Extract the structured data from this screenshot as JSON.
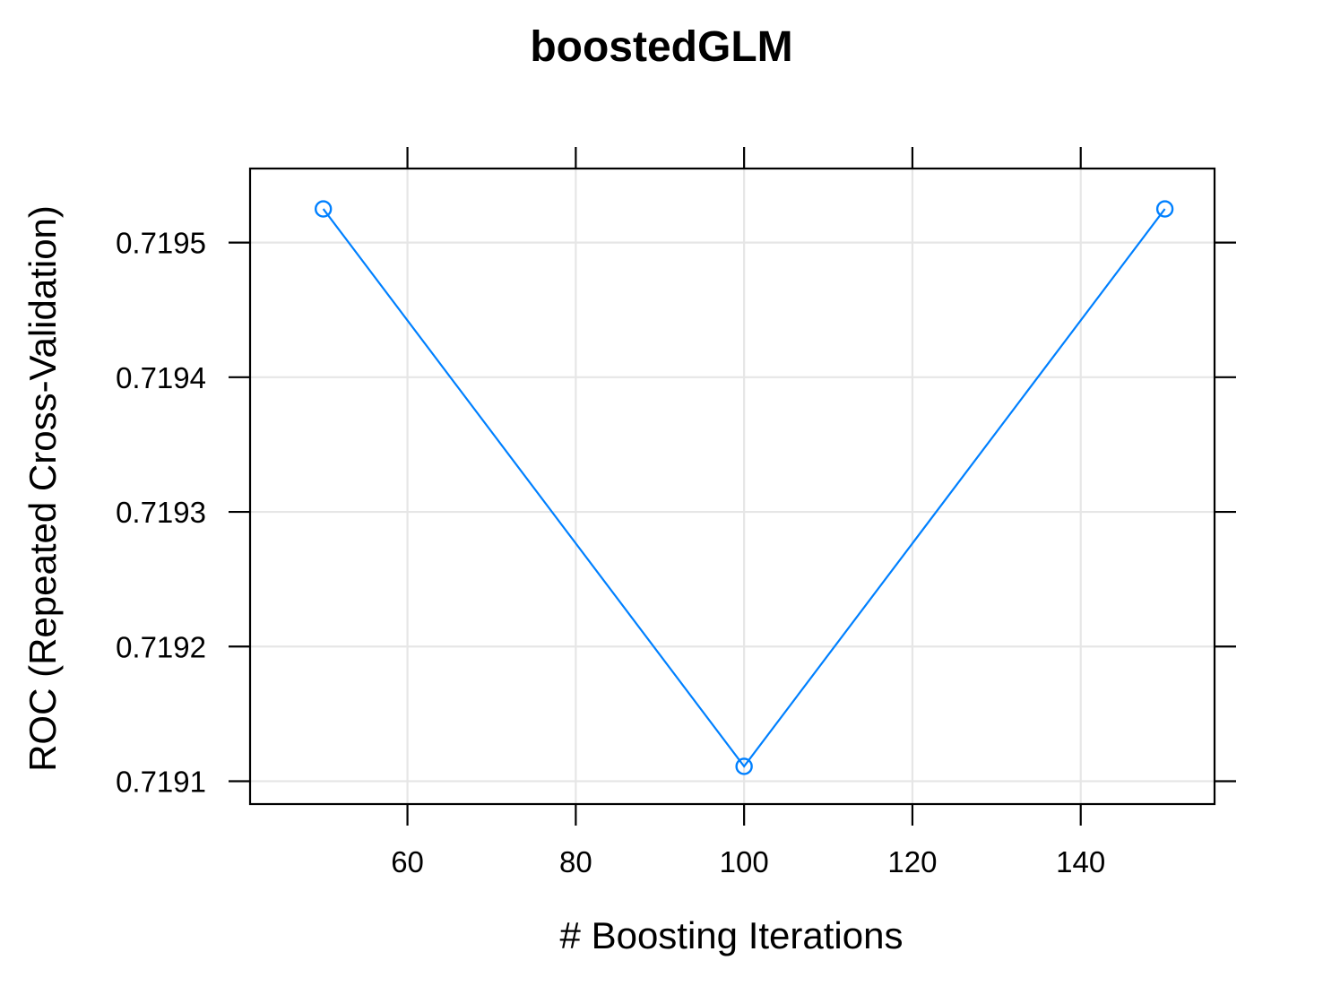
{
  "colors": {
    "series": "#0080ff",
    "grid": "#e6e6e6",
    "frame": "#000000",
    "background": "#ffffff"
  },
  "chart_data": {
    "type": "line",
    "title": "boostedGLM",
    "xlabel": "# Boosting Iterations",
    "ylabel": "ROC (Repeated Cross-Validation)",
    "x": [
      50,
      100,
      150
    ],
    "series": [
      {
        "values": [
          0.719525,
          0.719111,
          0.719525
        ]
      }
    ],
    "xlim": [
      41.3,
      155.9
    ],
    "ylim": [
      0.719083,
      0.719555
    ],
    "xticks": [
      60,
      80,
      100,
      120,
      140
    ],
    "xtick_labels": [
      "60",
      "80",
      "100",
      "120",
      "140"
    ],
    "yticks": [
      0.7191,
      0.7192,
      0.7193,
      0.7194,
      0.7195
    ],
    "ytick_labels": [
      "0.7191",
      "0.7192",
      "0.7193",
      "0.7194",
      "0.7195"
    ],
    "grid": true,
    "marker": "open-circle"
  }
}
